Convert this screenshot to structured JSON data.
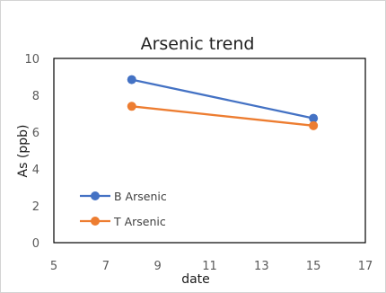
{
  "chart_data": {
    "type": "line",
    "title": "Arsenic trend",
    "xlabel": "date",
    "ylabel": "As (ppb)",
    "xlim": [
      5,
      17
    ],
    "ylim": [
      0,
      10
    ],
    "xticks": [
      5,
      7,
      9,
      11,
      13,
      15,
      17
    ],
    "yticks": [
      0,
      2,
      4,
      6,
      8,
      10
    ],
    "grid": false,
    "legend_position": "bottom-left",
    "series": [
      {
        "name": "B Arsenic",
        "color": "#4472C4",
        "points": [
          {
            "x": 8,
            "y": 8.85
          },
          {
            "x": 15,
            "y": 6.75
          }
        ]
      },
      {
        "name": "T Arsenic",
        "color": "#ED7D31",
        "points": [
          {
            "x": 8,
            "y": 7.4
          },
          {
            "x": 15,
            "y": 6.35
          }
        ]
      }
    ]
  }
}
